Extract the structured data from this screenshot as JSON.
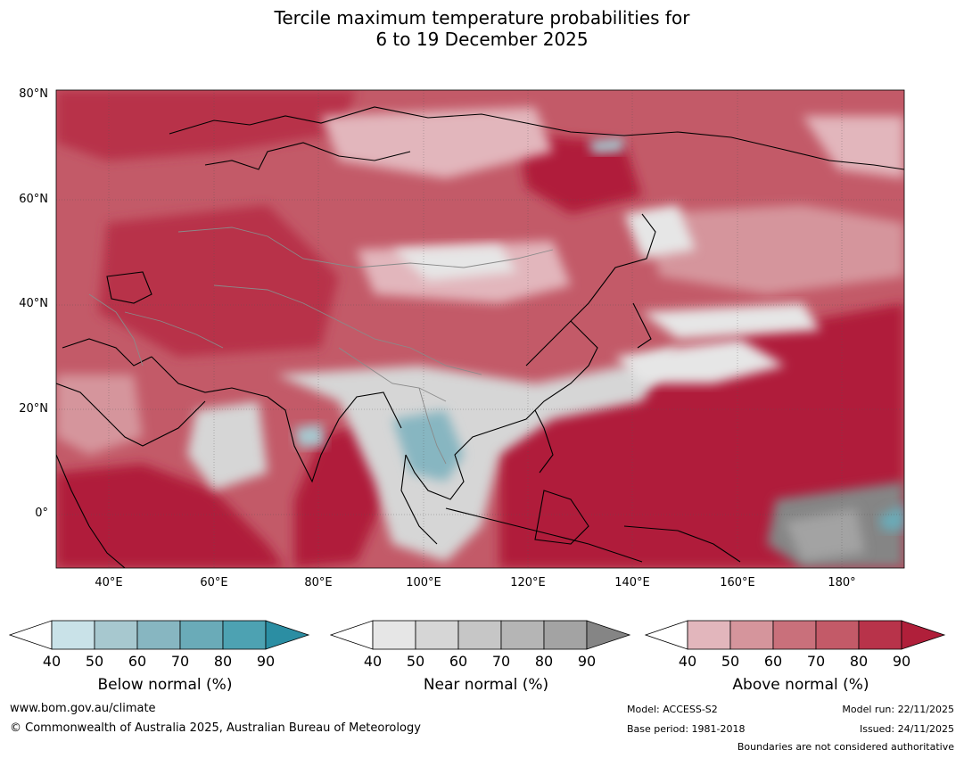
{
  "title": {
    "line1": "Tercile maximum temperature probabilities for",
    "line2": "6 to 19 December 2025"
  },
  "map": {
    "lat_labels": [
      "80°N",
      "60°N",
      "40°N",
      "20°N",
      "0°"
    ],
    "lon_labels": [
      "40°E",
      "60°E",
      "80°E",
      "100°E",
      "120°E",
      "140°E",
      "160°E",
      "180°"
    ],
    "lat_range": [
      -10,
      81
    ],
    "lon_range": [
      30,
      192
    ]
  },
  "legends": [
    {
      "title": "Below normal (%)",
      "ticks": [
        "40",
        "50",
        "60",
        "70",
        "80",
        "90"
      ],
      "colors": [
        "#c9e2e8",
        "#a7c8cf",
        "#87b6c1",
        "#6aabb8",
        "#4da2b2",
        "#2b8ea3"
      ]
    },
    {
      "title": "Near normal (%)",
      "ticks": [
        "40",
        "50",
        "60",
        "70",
        "80",
        "90"
      ],
      "colors": [
        "#e6e6e6",
        "#d6d6d6",
        "#c6c6c6",
        "#b5b5b5",
        "#a3a3a3",
        "#858585"
      ]
    },
    {
      "title": "Above normal (%)",
      "ticks": [
        "40",
        "50",
        "60",
        "70",
        "80",
        "90"
      ],
      "colors": [
        "#e2b6bc",
        "#d5959c",
        "#c9707b",
        "#c35a68",
        "#b8334a",
        "#b01f3a"
      ]
    }
  ],
  "footer": {
    "website": "www.bom.gov.au/climate",
    "copyright": "© Commonwealth of Australia 2025, Australian Bureau of Meteorology",
    "model": "Model: ACCESS-S2",
    "base_period": "Base period: 1981-2018",
    "model_run": "Model run: 22/11/2025",
    "issued": "Issued: 24/11/2025",
    "disclaimer": "Boundaries are not considered authoritative"
  }
}
